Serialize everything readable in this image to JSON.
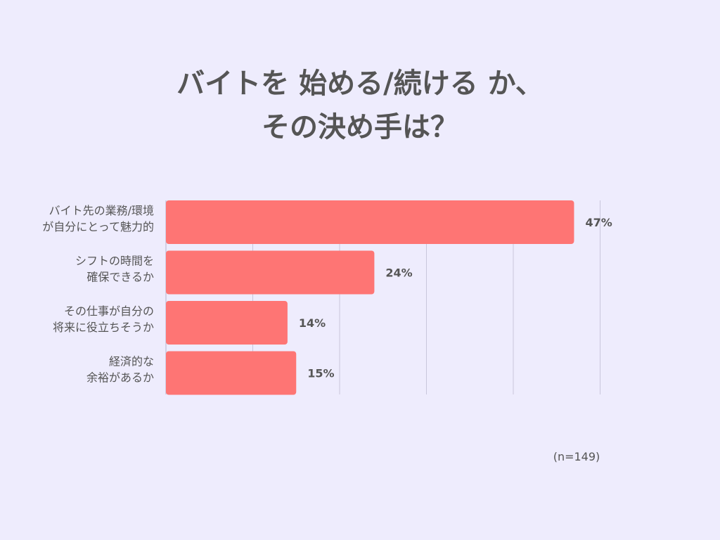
{
  "title": {
    "line1": "バイトを 始める/続ける か、",
    "line2": "その決め手は？"
  },
  "sample_note": "(n=149)",
  "colors": {
    "background": "#eeecfd",
    "bar": "#fe7574",
    "text": "#555555",
    "grid": "#c9c6dc"
  },
  "chart_data": {
    "type": "bar",
    "orientation": "horizontal",
    "categories": [
      [
        "バイト先の業務/環境",
        "が自分にとって魅力的"
      ],
      [
        "シフトの時間を",
        "確保できるか"
      ],
      [
        "その仕事が自分の",
        "将来に役立ちそうか"
      ],
      [
        "経済的な",
        "余裕があるか"
      ]
    ],
    "values": [
      47,
      24,
      14,
      15
    ],
    "value_labels": [
      "47%",
      "24%",
      "14%",
      "15%"
    ],
    "unit": "%",
    "xlim": [
      0,
      50
    ],
    "grid": true,
    "legend": "none"
  }
}
